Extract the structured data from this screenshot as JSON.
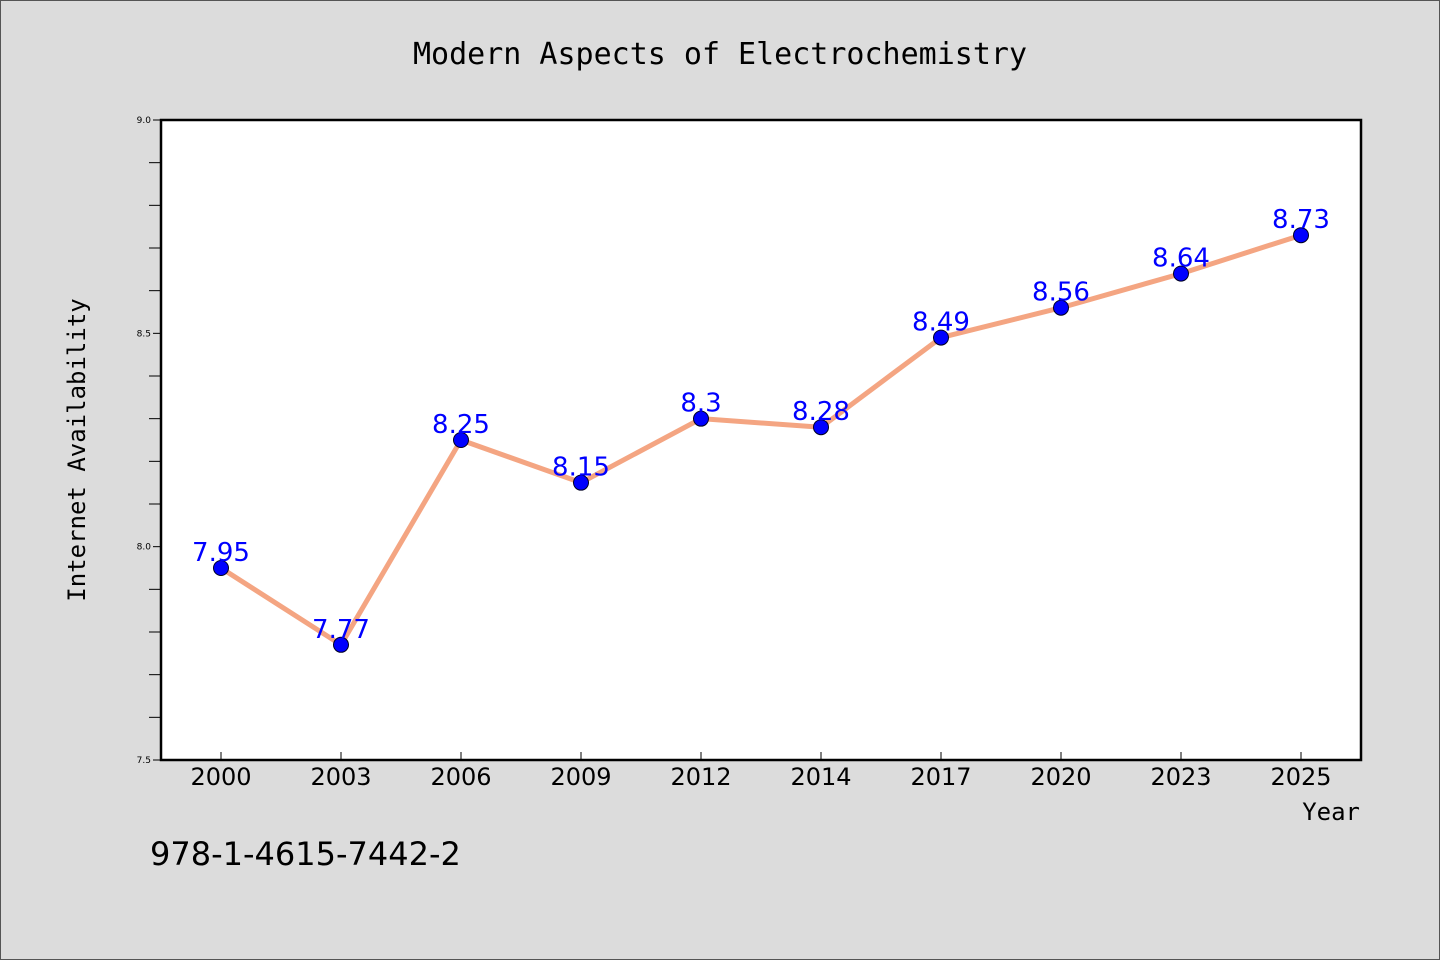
{
  "chart_data": {
    "type": "line",
    "title": "Modern Aspects of Electrochemistry",
    "xlabel": "Year",
    "ylabel": "Internet Availability",
    "categories": [
      "2000",
      "2003",
      "2006",
      "2009",
      "2012",
      "2014",
      "2017",
      "2020",
      "2023",
      "2025"
    ],
    "series": [
      {
        "values": [
          7.95,
          7.77,
          8.25,
          8.15,
          8.3,
          8.28,
          8.49,
          8.56,
          8.64,
          8.73
        ]
      }
    ],
    "data_labels": [
      "7.95",
      "7.77",
      "8.25",
      "8.15",
      "8.3",
      "8.28",
      "8.49",
      "8.56",
      "8.64",
      "8.73"
    ],
    "ylim": [
      7.5,
      9.0
    ],
    "yticks_major": [
      "7.5",
      "8.0",
      "8.5",
      "9.0"
    ],
    "ytick_minor_step": 0.1,
    "grid": false,
    "legend": "none",
    "colors": {
      "line": "#f4a582",
      "marker": "#0000ff",
      "data_label": "#0000ff",
      "plot_bg": "#ffffff",
      "figure_bg": "#dcdcdc"
    }
  },
  "annotation": {
    "isbn": "978-1-4615-7442-2"
  }
}
